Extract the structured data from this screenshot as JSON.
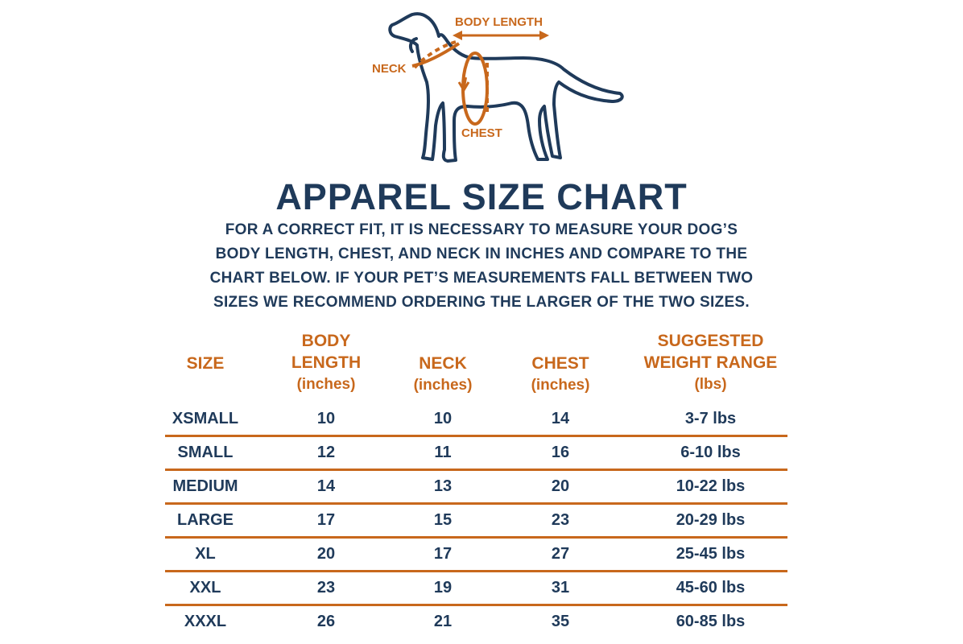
{
  "diagram": {
    "labels": {
      "body_length": "BODY LENGTH",
      "neck": "NECK",
      "chest": "CHEST"
    },
    "colors": {
      "outline": "#1f3a5a",
      "accent": "#c8681c"
    }
  },
  "title": "APPAREL SIZE CHART",
  "description": [
    "FOR A CORRECT FIT, IT IS NECESSARY TO MEASURE YOUR DOG’S",
    "BODY LENGTH, CHEST, AND NECK IN INCHES AND COMPARE TO THE",
    "CHART BELOW. IF YOUR PET’S MEASUREMENTS FALL BETWEEN TWO",
    "SIZES WE RECOMMEND ORDERING THE LARGER OF THE TWO SIZES."
  ],
  "table": {
    "headers": {
      "size": "SIZE",
      "body_length": [
        "BODY",
        "LENGTH",
        "(inches)"
      ],
      "neck": [
        "NECK",
        "(inches)"
      ],
      "chest": [
        "CHEST",
        "(inches)"
      ],
      "weight": [
        "SUGGESTED",
        "WEIGHT RANGE",
        "(lbs)"
      ]
    },
    "rows": [
      [
        "XSMALL",
        "10",
        "10",
        "14",
        "3-7 lbs"
      ],
      [
        "SMALL",
        "12",
        "11",
        "16",
        "6-10 lbs"
      ],
      [
        "MEDIUM",
        "14",
        "13",
        "20",
        "10-22 lbs"
      ],
      [
        "LARGE",
        "17",
        "15",
        "23",
        "20-29 lbs"
      ],
      [
        "XL",
        "20",
        "17",
        "27",
        "25-45 lbs"
      ],
      [
        "XXL",
        "23",
        "19",
        "31",
        "45-60 lbs"
      ],
      [
        "XXXL",
        "26",
        "21",
        "35",
        "60-85 lbs"
      ]
    ]
  }
}
